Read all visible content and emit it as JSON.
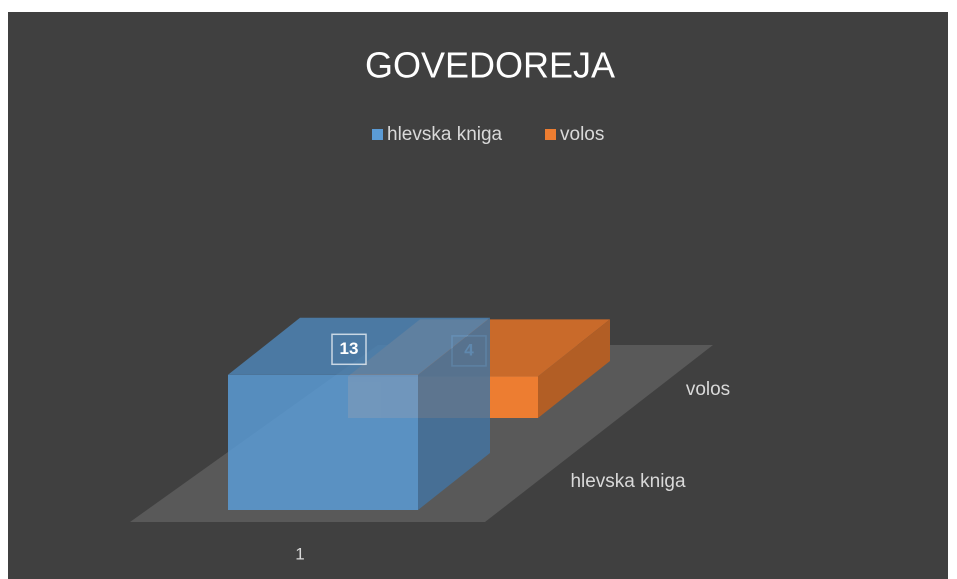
{
  "chart_data": {
    "type": "bar3d",
    "title": "GOVEDOREJA",
    "categories": [
      "1"
    ],
    "series": [
      {
        "name": "hlevska kniga",
        "color": "#5b9bd5",
        "values": [
          13
        ]
      },
      {
        "name": "volos",
        "color": "#ed7d31",
        "values": [
          4
        ]
      }
    ],
    "legend": "top"
  }
}
